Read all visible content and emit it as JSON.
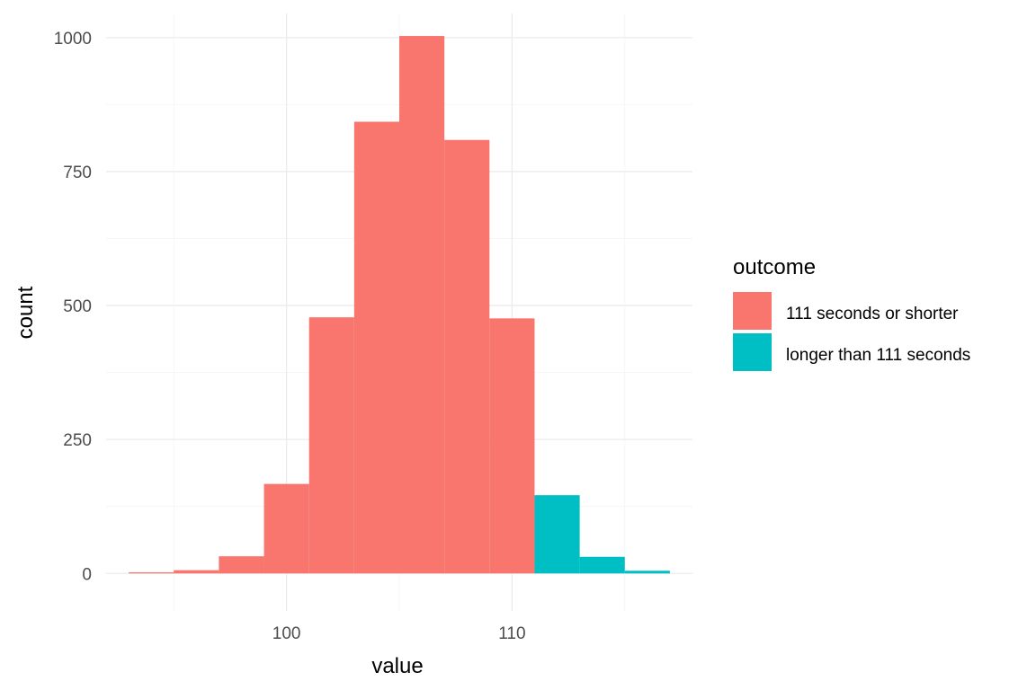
{
  "chart_data": {
    "type": "bar",
    "subtype": "histogram",
    "xlabel": "value",
    "ylabel": "count",
    "xlim": [
      92,
      118
    ],
    "ylim": [
      -70,
      1045
    ],
    "x_ticks": [
      100,
      110
    ],
    "y_ticks": [
      0,
      250,
      500,
      750,
      1000
    ],
    "grid": true,
    "legend_position": "right",
    "legend_title": "outcome",
    "bins": [
      {
        "x_start": 93,
        "x_end": 95,
        "value": 2,
        "group": "111 seconds or shorter"
      },
      {
        "x_start": 95,
        "x_end": 97,
        "value": 6,
        "group": "111 seconds or shorter"
      },
      {
        "x_start": 97,
        "x_end": 99,
        "value": 32,
        "group": "111 seconds or shorter"
      },
      {
        "x_start": 99,
        "x_end": 101,
        "value": 167,
        "group": "111 seconds or shorter"
      },
      {
        "x_start": 101,
        "x_end": 103,
        "value": 478,
        "group": "111 seconds or shorter"
      },
      {
        "x_start": 103,
        "x_end": 105,
        "value": 843,
        "group": "111 seconds or shorter"
      },
      {
        "x_start": 105,
        "x_end": 107,
        "value": 1003,
        "group": "111 seconds or shorter"
      },
      {
        "x_start": 107,
        "x_end": 109,
        "value": 809,
        "group": "111 seconds or shorter"
      },
      {
        "x_start": 109,
        "x_end": 111,
        "value": 476,
        "group": "111 seconds or shorter"
      },
      {
        "x_start": 111,
        "x_end": 113,
        "value": 146,
        "group": "longer than 111 seconds"
      },
      {
        "x_start": 113,
        "x_end": 115,
        "value": 31,
        "group": "longer than 111 seconds"
      },
      {
        "x_start": 115,
        "x_end": 117,
        "value": 5,
        "group": "longer than 111 seconds"
      }
    ],
    "series": [
      {
        "name": "111 seconds or shorter",
        "color": "#f8766d"
      },
      {
        "name": "longer than 111 seconds",
        "color": "#00bfc4"
      }
    ]
  }
}
